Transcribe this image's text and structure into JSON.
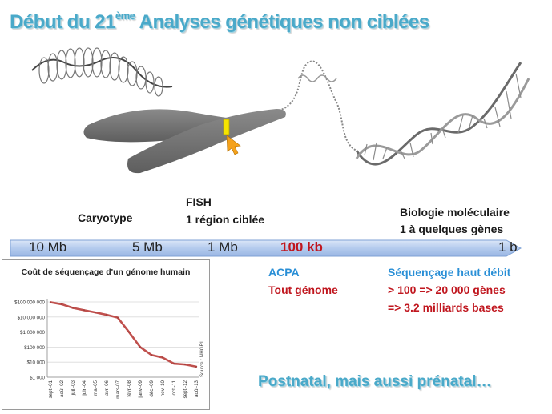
{
  "title": {
    "main_before": "Début du 21",
    "superscript": "ème",
    "main_after": " Analyses génétiques non ciblées"
  },
  "methods": {
    "caryotype": "Caryotype",
    "fish_title": "FISH",
    "fish_detail": "1 région ciblée",
    "molbio_title": "Biologie moléculaire",
    "molbio_detail": "1 à quelques gènes"
  },
  "scale": {
    "s10mb": "10 Mb",
    "s5mb": "5 Mb",
    "s1mb": "1 Mb",
    "s100kb": "100 kb",
    "s1b": "1 b"
  },
  "acpa": {
    "title": "ACPA",
    "detail": "Tout génome"
  },
  "ngs": {
    "title": "Séquençage haut débit",
    "line1": "> 100 => 20 000 gènes",
    "line2": "=> 3.2 milliards bases"
  },
  "footer": "Postnatal, mais aussi prénatal…",
  "colors": {
    "accent_blue": "#4aa9c9",
    "scale_arrow": "#8fb2e0",
    "highlight_red": "#c0161e",
    "series": "#c0504d"
  },
  "chart_data": {
    "type": "line",
    "title": "Coût de séquençage d'un génome humain",
    "source": "Source : NHGRI",
    "y_scale": "log",
    "ylim": [
      1000,
      100000000
    ],
    "y_ticks": [
      "$100 000 000",
      "$10 000 000",
      "$1 000 000",
      "$100 000",
      "$10 000",
      "$1 000"
    ],
    "x_ticks": [
      "sept.-01",
      "août-02",
      "juil.-03",
      "juin-04",
      "mai-05",
      "avr.-06",
      "mars-07",
      "févr.-08",
      "janv.-09",
      "déc.-09",
      "nov.-10",
      "oct.-11",
      "sept.-12",
      "août-13"
    ],
    "series": [
      {
        "values": [
          {
            "x": "sept.-01",
            "y": 95000000
          },
          {
            "x": "août-02",
            "y": 70000000
          },
          {
            "x": "juil.-03",
            "y": 40000000
          },
          {
            "x": "juin-04",
            "y": 28000000
          },
          {
            "x": "mai-05",
            "y": 20000000
          },
          {
            "x": "avr.-06",
            "y": 14000000
          },
          {
            "x": "mars-07",
            "y": 9000000
          },
          {
            "x": "févr.-08",
            "y": 1000000
          },
          {
            "x": "janv.-09",
            "y": 100000
          },
          {
            "x": "déc.-09",
            "y": 30000
          },
          {
            "x": "nov.-10",
            "y": 20000
          },
          {
            "x": "oct.-11",
            "y": 8000
          },
          {
            "x": "sept.-12",
            "y": 7000
          },
          {
            "x": "août-13",
            "y": 5000
          }
        ]
      }
    ]
  }
}
